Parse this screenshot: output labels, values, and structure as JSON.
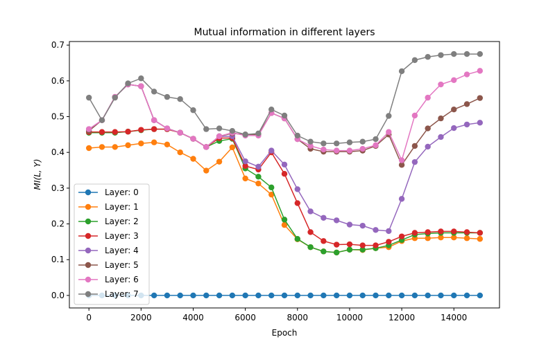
{
  "chart_data": {
    "type": "line",
    "title": "Mutual information in different layers",
    "xlabel": "Epoch",
    "ylabel": "MI(L, Y)",
    "xlim": [
      -750,
      15750
    ],
    "ylim": [
      -0.035,
      0.71
    ],
    "xticks": [
      0,
      2000,
      4000,
      6000,
      8000,
      10000,
      12000,
      14000
    ],
    "yticks": [
      0.0,
      0.1,
      0.2,
      0.3,
      0.4,
      0.5,
      0.6,
      0.7
    ],
    "xtick_labels": [
      "0",
      "2000",
      "4000",
      "6000",
      "8000",
      "10000",
      "12000",
      "14000"
    ],
    "ytick_labels": [
      "0.0",
      "0.1",
      "0.2",
      "0.3",
      "0.4",
      "0.5",
      "0.6",
      "0.7"
    ],
    "grid": false,
    "legend_position": "lower-left",
    "x": [
      0,
      500,
      1000,
      1500,
      2000,
      2500,
      3000,
      3500,
      4000,
      4500,
      5000,
      5500,
      6000,
      6500,
      7000,
      7500,
      8000,
      8500,
      9000,
      9500,
      10000,
      10500,
      11000,
      11500,
      12000,
      12500,
      13000,
      13500,
      14000,
      14500,
      15000
    ],
    "series": [
      {
        "name": "Layer: 0",
        "color": "#1f77b4",
        "values": [
          0.0,
          0.0,
          0.0,
          0.0,
          0.0,
          0.0,
          0.0,
          0.0,
          0.0,
          0.0,
          0.0,
          0.0,
          0.0,
          0.0,
          0.0,
          0.0,
          0.0,
          0.0,
          0.0,
          0.0,
          0.0,
          0.0,
          0.0,
          0.0,
          0.0,
          0.0,
          0.0,
          0.0,
          0.0,
          0.0,
          0.0
        ]
      },
      {
        "name": "Layer: 1",
        "color": "#ff7f0e",
        "values": [
          0.412,
          0.415,
          0.415,
          0.42,
          0.425,
          0.428,
          0.422,
          0.4,
          0.382,
          0.349,
          0.374,
          0.414,
          0.327,
          0.313,
          0.282,
          0.197,
          0.157,
          0.135,
          0.123,
          0.12,
          0.128,
          0.127,
          0.132,
          0.135,
          0.152,
          0.16,
          0.16,
          0.162,
          0.162,
          0.16,
          0.158
        ]
      },
      {
        "name": "Layer: 2",
        "color": "#2ca02c",
        "values": [
          0.455,
          0.455,
          0.455,
          0.458,
          0.462,
          0.465,
          0.465,
          0.455,
          0.438,
          0.415,
          0.432,
          0.438,
          0.355,
          0.332,
          0.302,
          0.212,
          0.158,
          0.135,
          0.123,
          0.12,
          0.128,
          0.128,
          0.132,
          0.14,
          0.155,
          0.17,
          0.173,
          0.175,
          0.175,
          0.175,
          0.175
        ]
      },
      {
        "name": "Layer: 3",
        "color": "#d62728",
        "values": [
          0.457,
          0.457,
          0.457,
          0.458,
          0.463,
          0.465,
          0.465,
          0.455,
          0.438,
          0.415,
          0.44,
          0.44,
          0.362,
          0.352,
          0.4,
          0.34,
          0.258,
          0.177,
          0.152,
          0.142,
          0.143,
          0.14,
          0.14,
          0.15,
          0.165,
          0.175,
          0.177,
          0.179,
          0.179,
          0.177,
          0.175
        ]
      },
      {
        "name": "Layer: 4",
        "color": "#9467bd",
        "values": [
          0.465,
          0.49,
          0.555,
          0.59,
          0.585,
          0.49,
          0.467,
          0.455,
          0.438,
          0.415,
          0.445,
          0.445,
          0.375,
          0.36,
          0.405,
          0.366,
          0.297,
          0.235,
          0.217,
          0.21,
          0.198,
          0.195,
          0.183,
          0.18,
          0.27,
          0.373,
          0.416,
          0.443,
          0.468,
          0.478,
          0.483
        ]
      },
      {
        "name": "Layer: 5",
        "color": "#8c564b",
        "values": [
          0.46,
          0.49,
          0.555,
          0.59,
          0.585,
          0.49,
          0.467,
          0.455,
          0.438,
          0.415,
          0.445,
          0.453,
          0.45,
          0.45,
          0.51,
          0.495,
          0.437,
          0.41,
          0.402,
          0.402,
          0.402,
          0.405,
          0.418,
          0.45,
          0.365,
          0.418,
          0.467,
          0.495,
          0.52,
          0.535,
          0.552
        ]
      },
      {
        "name": "Layer: 6",
        "color": "#e377c2",
        "values": [
          0.465,
          0.49,
          0.555,
          0.59,
          0.585,
          0.49,
          0.467,
          0.455,
          0.438,
          0.415,
          0.445,
          0.455,
          0.447,
          0.447,
          0.51,
          0.495,
          0.437,
          0.418,
          0.408,
          0.405,
          0.405,
          0.41,
          0.42,
          0.457,
          0.378,
          0.503,
          0.553,
          0.59,
          0.602,
          0.618,
          0.628
        ]
      },
      {
        "name": "Layer: 7",
        "color": "#7f7f7f",
        "values": [
          0.553,
          0.49,
          0.553,
          0.593,
          0.607,
          0.57,
          0.555,
          0.549,
          0.518,
          0.465,
          0.467,
          0.46,
          0.45,
          0.453,
          0.52,
          0.503,
          0.447,
          0.43,
          0.425,
          0.425,
          0.428,
          0.43,
          0.437,
          0.502,
          0.627,
          0.658,
          0.667,
          0.672,
          0.675,
          0.675,
          0.675
        ]
      }
    ]
  }
}
